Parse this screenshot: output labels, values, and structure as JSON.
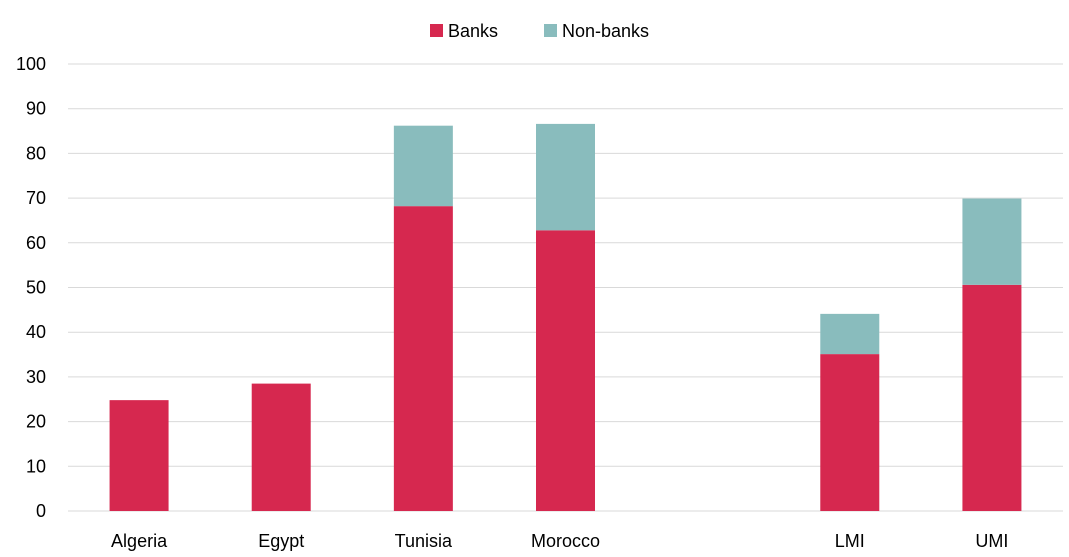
{
  "chart_data": {
    "type": "bar",
    "stacked": true,
    "categories": [
      "Algeria",
      "Egypt",
      "Tunisia",
      "Morocco",
      "",
      "LMI",
      "UMI"
    ],
    "series": [
      {
        "name": "Banks",
        "values": [
          24.8,
          28.5,
          68.2,
          62.8,
          null,
          35.1,
          50.6
        ]
      },
      {
        "name": "Non-banks",
        "values": [
          0,
          0,
          18.0,
          23.8,
          null,
          9.0,
          19.3
        ]
      }
    ],
    "colors": {
      "Banks": "#d6284f",
      "Non-banks": "#89bcbd",
      "grid": "#d9d9d9"
    },
    "title": "",
    "xlabel": "",
    "ylabel": "",
    "ylim": [
      0,
      100
    ],
    "yticks": [
      0,
      10,
      20,
      30,
      40,
      50,
      60,
      70,
      80,
      90,
      100
    ],
    "grid": true,
    "legend_position": "top-center"
  }
}
